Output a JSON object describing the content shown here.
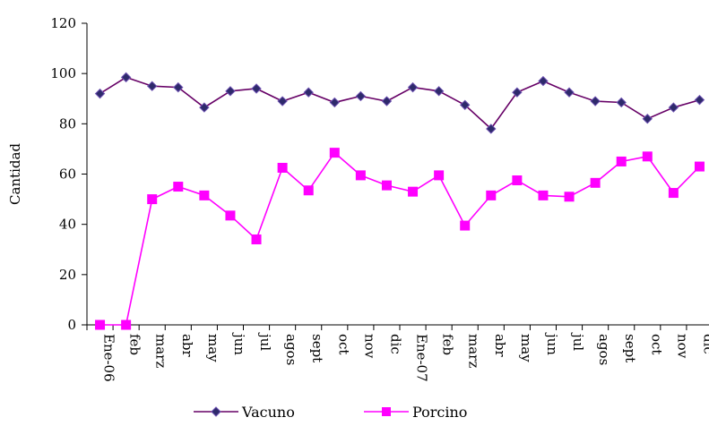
{
  "chart_data": {
    "type": "line",
    "title": "",
    "xlabel": "",
    "ylabel": "Cantidad",
    "ylim": [
      0,
      120
    ],
    "yticks": [
      0,
      20,
      40,
      60,
      80,
      100,
      120
    ],
    "grid": false,
    "legend_position": "bottom",
    "categories": [
      "Ene-06",
      "feb",
      "marz",
      "abr",
      "may",
      "jun",
      "jul",
      "agos",
      "sept",
      "oct",
      "nov",
      "dic",
      "Ene-07",
      "feb",
      "marz",
      "abr",
      "may",
      "jun",
      "jul",
      "agos",
      "sept",
      "oct",
      "nov",
      "dic"
    ],
    "series": [
      {
        "name": "Vacuno",
        "color": "#2E2A6B",
        "line_color": "#660066",
        "marker": "diamond",
        "values": [
          92,
          98.5,
          95,
          94.5,
          86.5,
          93,
          94,
          89,
          92.5,
          88.5,
          91,
          89,
          94.5,
          93,
          87.5,
          78,
          92.5,
          97,
          92.5,
          89,
          88.5,
          82,
          86.5,
          89.5
        ]
      },
      {
        "name": "Porcino",
        "color": "#FF00FF",
        "line_color": "#FF00FF",
        "marker": "square",
        "values": [
          0,
          0,
          50,
          55,
          51.5,
          43.5,
          34,
          62.5,
          53.5,
          68.5,
          59.5,
          55.5,
          53,
          59.5,
          39.5,
          51.5,
          57.5,
          51.5,
          51,
          56.5,
          65,
          67,
          52.5,
          63
        ]
      }
    ]
  }
}
